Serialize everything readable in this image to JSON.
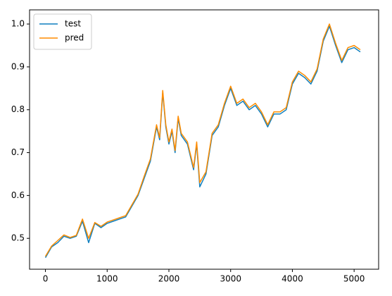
{
  "chart_data": {
    "type": "line",
    "x": [
      0,
      100,
      200,
      300,
      400,
      500,
      600,
      700,
      800,
      900,
      1000,
      1100,
      1200,
      1300,
      1400,
      1500,
      1600,
      1700,
      1750,
      1800,
      1850,
      1900,
      1950,
      2000,
      2050,
      2100,
      2150,
      2200,
      2300,
      2400,
      2450,
      2500,
      2600,
      2700,
      2800,
      2900,
      3000,
      3100,
      3200,
      3300,
      3400,
      3500,
      3600,
      3700,
      3800,
      3900,
      4000,
      4100,
      4200,
      4300,
      4400,
      4500,
      4600,
      4700,
      4800,
      4900,
      5000,
      5100
    ],
    "series": [
      {
        "name": "test",
        "color": "#0f7fbf",
        "values": [
          0.455,
          0.48,
          0.49,
          0.505,
          0.5,
          0.505,
          0.54,
          0.49,
          0.535,
          0.525,
          0.535,
          0.54,
          0.545,
          0.55,
          0.575,
          0.6,
          0.64,
          0.68,
          0.72,
          0.76,
          0.73,
          0.84,
          0.76,
          0.72,
          0.75,
          0.7,
          0.78,
          0.74,
          0.72,
          0.66,
          0.72,
          0.62,
          0.65,
          0.74,
          0.76,
          0.81,
          0.85,
          0.81,
          0.82,
          0.8,
          0.81,
          0.79,
          0.76,
          0.79,
          0.79,
          0.8,
          0.86,
          0.885,
          0.875,
          0.86,
          0.89,
          0.96,
          0.995,
          0.95,
          0.91,
          0.94,
          0.945,
          0.935
        ]
      },
      {
        "name": "pred",
        "color": "#ff8c00",
        "values": [
          0.458,
          0.482,
          0.495,
          0.508,
          0.502,
          0.507,
          0.545,
          0.5,
          0.537,
          0.528,
          0.538,
          0.543,
          0.548,
          0.553,
          0.578,
          0.603,
          0.645,
          0.685,
          0.725,
          0.765,
          0.735,
          0.845,
          0.765,
          0.725,
          0.755,
          0.705,
          0.785,
          0.745,
          0.725,
          0.665,
          0.725,
          0.63,
          0.655,
          0.745,
          0.765,
          0.815,
          0.855,
          0.815,
          0.825,
          0.805,
          0.815,
          0.795,
          0.765,
          0.795,
          0.795,
          0.805,
          0.865,
          0.89,
          0.88,
          0.865,
          0.895,
          0.965,
          1.0,
          0.955,
          0.915,
          0.945,
          0.95,
          0.94
        ]
      }
    ],
    "xlim": [
      -257,
      5397
    ],
    "xticks": [
      0,
      1000,
      2000,
      3000,
      4000,
      5000
    ],
    "ylim": [
      0.428,
      1.033
    ],
    "yticks": [
      0.5,
      0.6,
      0.7,
      0.8,
      0.9,
      {
        "value": 1,
        "label": "1.0"
      }
    ],
    "legend": "upper left"
  }
}
